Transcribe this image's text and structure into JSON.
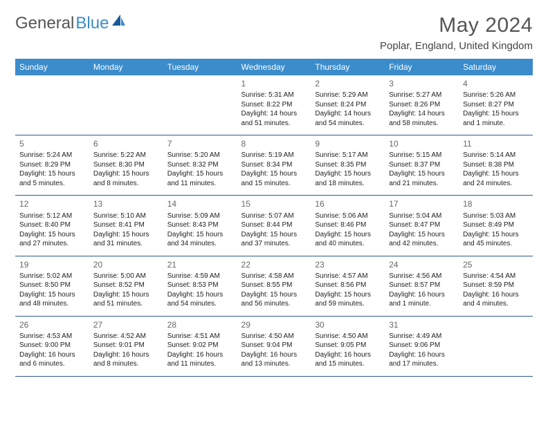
{
  "logo": {
    "text1": "General",
    "text2": "Blue"
  },
  "title": "May 2024",
  "location": "Poplar, England, United Kingdom",
  "colors": {
    "header_bg": "#3b8ccb",
    "border": "#2d5a8a",
    "logo_blue": "#3b8ccb",
    "text_gray": "#555"
  },
  "weekdays": [
    "Sunday",
    "Monday",
    "Tuesday",
    "Wednesday",
    "Thursday",
    "Friday",
    "Saturday"
  ],
  "weeks": [
    [
      null,
      null,
      null,
      {
        "n": "1",
        "sr": "5:31 AM",
        "ss": "8:22 PM",
        "dl": "14 hours and 51 minutes."
      },
      {
        "n": "2",
        "sr": "5:29 AM",
        "ss": "8:24 PM",
        "dl": "14 hours and 54 minutes."
      },
      {
        "n": "3",
        "sr": "5:27 AM",
        "ss": "8:26 PM",
        "dl": "14 hours and 58 minutes."
      },
      {
        "n": "4",
        "sr": "5:26 AM",
        "ss": "8:27 PM",
        "dl": "15 hours and 1 minute."
      }
    ],
    [
      {
        "n": "5",
        "sr": "5:24 AM",
        "ss": "8:29 PM",
        "dl": "15 hours and 5 minutes."
      },
      {
        "n": "6",
        "sr": "5:22 AM",
        "ss": "8:30 PM",
        "dl": "15 hours and 8 minutes."
      },
      {
        "n": "7",
        "sr": "5:20 AM",
        "ss": "8:32 PM",
        "dl": "15 hours and 11 minutes."
      },
      {
        "n": "8",
        "sr": "5:19 AM",
        "ss": "8:34 PM",
        "dl": "15 hours and 15 minutes."
      },
      {
        "n": "9",
        "sr": "5:17 AM",
        "ss": "8:35 PM",
        "dl": "15 hours and 18 minutes."
      },
      {
        "n": "10",
        "sr": "5:15 AM",
        "ss": "8:37 PM",
        "dl": "15 hours and 21 minutes."
      },
      {
        "n": "11",
        "sr": "5:14 AM",
        "ss": "8:38 PM",
        "dl": "15 hours and 24 minutes."
      }
    ],
    [
      {
        "n": "12",
        "sr": "5:12 AM",
        "ss": "8:40 PM",
        "dl": "15 hours and 27 minutes."
      },
      {
        "n": "13",
        "sr": "5:10 AM",
        "ss": "8:41 PM",
        "dl": "15 hours and 31 minutes."
      },
      {
        "n": "14",
        "sr": "5:09 AM",
        "ss": "8:43 PM",
        "dl": "15 hours and 34 minutes."
      },
      {
        "n": "15",
        "sr": "5:07 AM",
        "ss": "8:44 PM",
        "dl": "15 hours and 37 minutes."
      },
      {
        "n": "16",
        "sr": "5:06 AM",
        "ss": "8:46 PM",
        "dl": "15 hours and 40 minutes."
      },
      {
        "n": "17",
        "sr": "5:04 AM",
        "ss": "8:47 PM",
        "dl": "15 hours and 42 minutes."
      },
      {
        "n": "18",
        "sr": "5:03 AM",
        "ss": "8:49 PM",
        "dl": "15 hours and 45 minutes."
      }
    ],
    [
      {
        "n": "19",
        "sr": "5:02 AM",
        "ss": "8:50 PM",
        "dl": "15 hours and 48 minutes."
      },
      {
        "n": "20",
        "sr": "5:00 AM",
        "ss": "8:52 PM",
        "dl": "15 hours and 51 minutes."
      },
      {
        "n": "21",
        "sr": "4:59 AM",
        "ss": "8:53 PM",
        "dl": "15 hours and 54 minutes."
      },
      {
        "n": "22",
        "sr": "4:58 AM",
        "ss": "8:55 PM",
        "dl": "15 hours and 56 minutes."
      },
      {
        "n": "23",
        "sr": "4:57 AM",
        "ss": "8:56 PM",
        "dl": "15 hours and 59 minutes."
      },
      {
        "n": "24",
        "sr": "4:56 AM",
        "ss": "8:57 PM",
        "dl": "16 hours and 1 minute."
      },
      {
        "n": "25",
        "sr": "4:54 AM",
        "ss": "8:59 PM",
        "dl": "16 hours and 4 minutes."
      }
    ],
    [
      {
        "n": "26",
        "sr": "4:53 AM",
        "ss": "9:00 PM",
        "dl": "16 hours and 6 minutes."
      },
      {
        "n": "27",
        "sr": "4:52 AM",
        "ss": "9:01 PM",
        "dl": "16 hours and 8 minutes."
      },
      {
        "n": "28",
        "sr": "4:51 AM",
        "ss": "9:02 PM",
        "dl": "16 hours and 11 minutes."
      },
      {
        "n": "29",
        "sr": "4:50 AM",
        "ss": "9:04 PM",
        "dl": "16 hours and 13 minutes."
      },
      {
        "n": "30",
        "sr": "4:50 AM",
        "ss": "9:05 PM",
        "dl": "16 hours and 15 minutes."
      },
      {
        "n": "31",
        "sr": "4:49 AM",
        "ss": "9:06 PM",
        "dl": "16 hours and 17 minutes."
      },
      null
    ]
  ]
}
